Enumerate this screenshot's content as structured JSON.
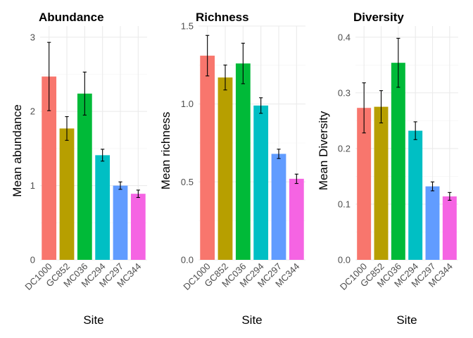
{
  "chart_data": [
    {
      "type": "bar",
      "title": "Abundance",
      "xlabel": "Site",
      "ylabel": "Mean abundance",
      "categories": [
        "DC1000",
        "GC852",
        "MC036",
        "MC294",
        "MC297",
        "MC344"
      ],
      "values": [
        2.47,
        1.77,
        2.24,
        1.41,
        1.0,
        0.89
      ],
      "errors": [
        0.46,
        0.16,
        0.29,
        0.08,
        0.05,
        0.05
      ],
      "ylim": [
        0,
        3.15
      ],
      "yticks": [
        0,
        1,
        2,
        3
      ],
      "ytick_labels": [
        "0",
        "1",
        "2",
        "3"
      ],
      "grid": true
    },
    {
      "type": "bar",
      "title": "Richness",
      "xlabel": "Site",
      "ylabel": "Mean richness",
      "categories": [
        "DC1000",
        "GC852",
        "MC036",
        "MC294",
        "MC297",
        "MC344"
      ],
      "values": [
        1.31,
        1.17,
        1.26,
        0.99,
        0.68,
        0.52
      ],
      "errors": [
        0.13,
        0.08,
        0.13,
        0.05,
        0.03,
        0.03
      ],
      "ylim": [
        0,
        1.5
      ],
      "yticks": [
        0,
        0.5,
        1.0,
        1.5
      ],
      "ytick_labels": [
        "0.0",
        "0.5",
        "1.0",
        "1.5"
      ],
      "grid": true
    },
    {
      "type": "bar",
      "title": "Diversity",
      "xlabel": "Site",
      "ylabel": "Mean Diversity",
      "categories": [
        "DC1000",
        "GC852",
        "MC036",
        "MC294",
        "MC297",
        "MC344"
      ],
      "values": [
        0.273,
        0.275,
        0.354,
        0.232,
        0.132,
        0.114
      ],
      "errors": [
        0.045,
        0.029,
        0.044,
        0.016,
        0.008,
        0.007
      ],
      "ylim": [
        0,
        0.42
      ],
      "yticks": [
        0,
        0.1,
        0.2,
        0.3,
        0.4
      ],
      "ytick_labels": [
        "0.0",
        "0.1",
        "0.2",
        "0.3",
        "0.4"
      ],
      "grid": true
    }
  ],
  "colors": {
    "DC1000": "#F8766D",
    "GC852": "#B79F00",
    "MC036": "#00BA38",
    "MC294": "#00BFC4",
    "MC297": "#619CFF",
    "MC344": "#F564E3"
  }
}
